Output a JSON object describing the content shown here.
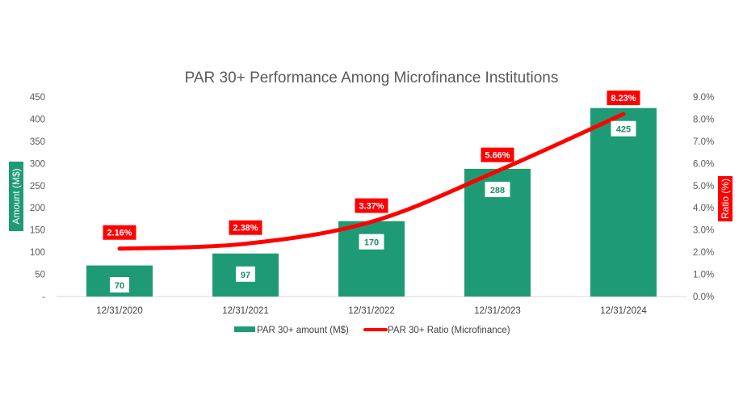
{
  "chart_data": {
    "type": "bar",
    "title": "PAR 30+ Performance Among Microfinance Institutions",
    "categories": [
      "12/31/2020",
      "12/31/2021",
      "12/31/2022",
      "12/31/2023",
      "12/31/2024"
    ],
    "series": [
      {
        "name": "PAR 30+ amount (M$)",
        "type": "bar",
        "axis": "left",
        "color": "#1e9b75",
        "values": [
          70,
          97,
          170,
          288,
          425
        ],
        "labels": [
          "70",
          "97",
          "170",
          "288",
          "425"
        ]
      },
      {
        "name": "PAR 30+ Ratio (Microfinance)",
        "type": "line",
        "axis": "right",
        "color": "#ff0000",
        "values": [
          2.16,
          2.38,
          3.37,
          5.66,
          8.23
        ],
        "labels": [
          "2.16%",
          "2.38%",
          "3.37%",
          "5.66%",
          "8.23%"
        ]
      }
    ],
    "ylabel": "Amount (M$)",
    "y2label": "Ratio (%)",
    "ylim": [
      0,
      450
    ],
    "y2lim": [
      0,
      9
    ],
    "yticks": [
      "-",
      "50",
      "100",
      "150",
      "200",
      "250",
      "300",
      "350",
      "400",
      "450"
    ],
    "y2ticks": [
      "0.0%",
      "1.0%",
      "2.0%",
      "3.0%",
      "4.0%",
      "5.0%",
      "6.0%",
      "7.0%",
      "8.0%",
      "9.0%"
    ],
    "grid": false,
    "legend_position": "bottom",
    "axis_label_color": "#1e9b75",
    "axis2_label_color": "#ff0000"
  }
}
